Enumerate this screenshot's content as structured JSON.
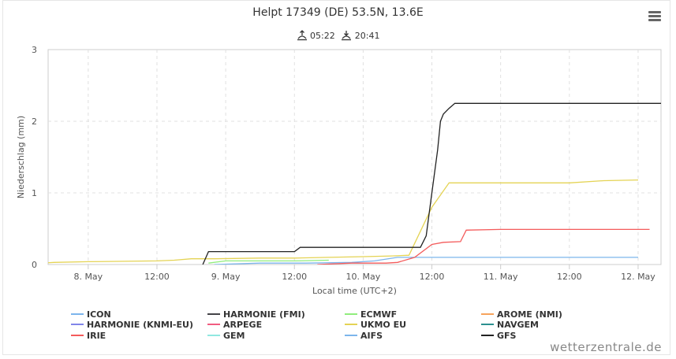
{
  "title": "Helpt 17349 (DE) 53.5N, 13.6E",
  "sunrise": "05:22",
  "sunset": "20:41",
  "credit": "wetterzentrale.de",
  "chart_data": {
    "type": "line",
    "xlabel": "Local time (UTC+2)",
    "ylabel": "Niederschlag (mm)",
    "ylim": [
      0,
      3
    ],
    "y_ticks": [
      "0",
      "1",
      "2",
      "3"
    ],
    "xlim": [
      -7,
      100
    ],
    "x_unit": "hours from 8 May 00:00 local time",
    "x_ticks": [
      {
        "x": -12,
        "label": "12:00"
      },
      {
        "x": 0,
        "label": "8. May"
      },
      {
        "x": 12,
        "label": "12:00"
      },
      {
        "x": 24,
        "label": "9. May"
      },
      {
        "x": 36,
        "label": "12:00"
      },
      {
        "x": 48,
        "label": "10. May"
      },
      {
        "x": 60,
        "label": "12:00"
      },
      {
        "x": 72,
        "label": "11. May"
      },
      {
        "x": 84,
        "label": "12:00"
      },
      {
        "x": 96,
        "label": "12. May"
      }
    ],
    "grid": true,
    "series": [
      {
        "name": "ICON",
        "color": "#7cb5ec",
        "x": [
          22,
          30,
          38,
          46,
          50,
          54,
          56,
          60,
          64,
          72,
          84,
          96
        ],
        "y": [
          0,
          0.02,
          0.02,
          0.03,
          0.05,
          0.1,
          0.1,
          0.1,
          0.1,
          0.1,
          0.1,
          0.1
        ]
      },
      {
        "name": "HARMONIE (FMI)",
        "color": "#434348",
        "x": [],
        "y": []
      },
      {
        "name": "ECMWF",
        "color": "#90ed7d",
        "x": [
          21,
          24,
          30,
          36,
          42
        ],
        "y": [
          0.02,
          0.05,
          0.05,
          0.05,
          0.06
        ]
      },
      {
        "name": "AROME (NMI)",
        "color": "#f7a35c",
        "x": [],
        "y": []
      },
      {
        "name": "HARMONIE (KNMI-EU)",
        "color": "#8085e9",
        "x": [],
        "y": []
      },
      {
        "name": "ARPEGE",
        "color": "#f15c80",
        "x": [],
        "y": []
      },
      {
        "name": "UKMO EU",
        "color": "#e4d354",
        "x": [
          -15,
          -12,
          -8,
          -6,
          0,
          12,
          15,
          18,
          22,
          30,
          36,
          42,
          48,
          53,
          56,
          60,
          63,
          72,
          84,
          90,
          96
        ],
        "y": [
          0,
          0.01,
          0.02,
          0.03,
          0.04,
          0.05,
          0.06,
          0.08,
          0.08,
          0.09,
          0.09,
          0.1,
          0.11,
          0.12,
          0.13,
          0.8,
          1.14,
          1.14,
          1.14,
          1.17,
          1.18
        ]
      },
      {
        "name": "NAVGEM",
        "color": "#2b908f",
        "x": [],
        "y": []
      },
      {
        "name": "IRIE",
        "color": "#f45b5b",
        "x": [
          40,
          46,
          52,
          54,
          57,
          60,
          62,
          65,
          66,
          72,
          84,
          98
        ],
        "y": [
          0,
          0.02,
          0.02,
          0.03,
          0.1,
          0.28,
          0.31,
          0.32,
          0.48,
          0.49,
          0.49,
          0.49
        ]
      },
      {
        "name": "GEM",
        "color": "#91e8e1",
        "x": [],
        "y": []
      },
      {
        "name": "AIFS",
        "color": "#7cb5ec",
        "x": [],
        "y": []
      },
      {
        "name": "GFS",
        "color": "#222222",
        "x": [
          20,
          21,
          22,
          36,
          37,
          58,
          59,
          60,
          61,
          61.5,
          62,
          63,
          64,
          72,
          84,
          100
        ],
        "y": [
          0,
          0.18,
          0.18,
          0.18,
          0.24,
          0.24,
          0.4,
          1.0,
          1.6,
          2.0,
          2.1,
          2.18,
          2.25,
          2.25,
          2.25,
          2.25
        ]
      }
    ]
  }
}
